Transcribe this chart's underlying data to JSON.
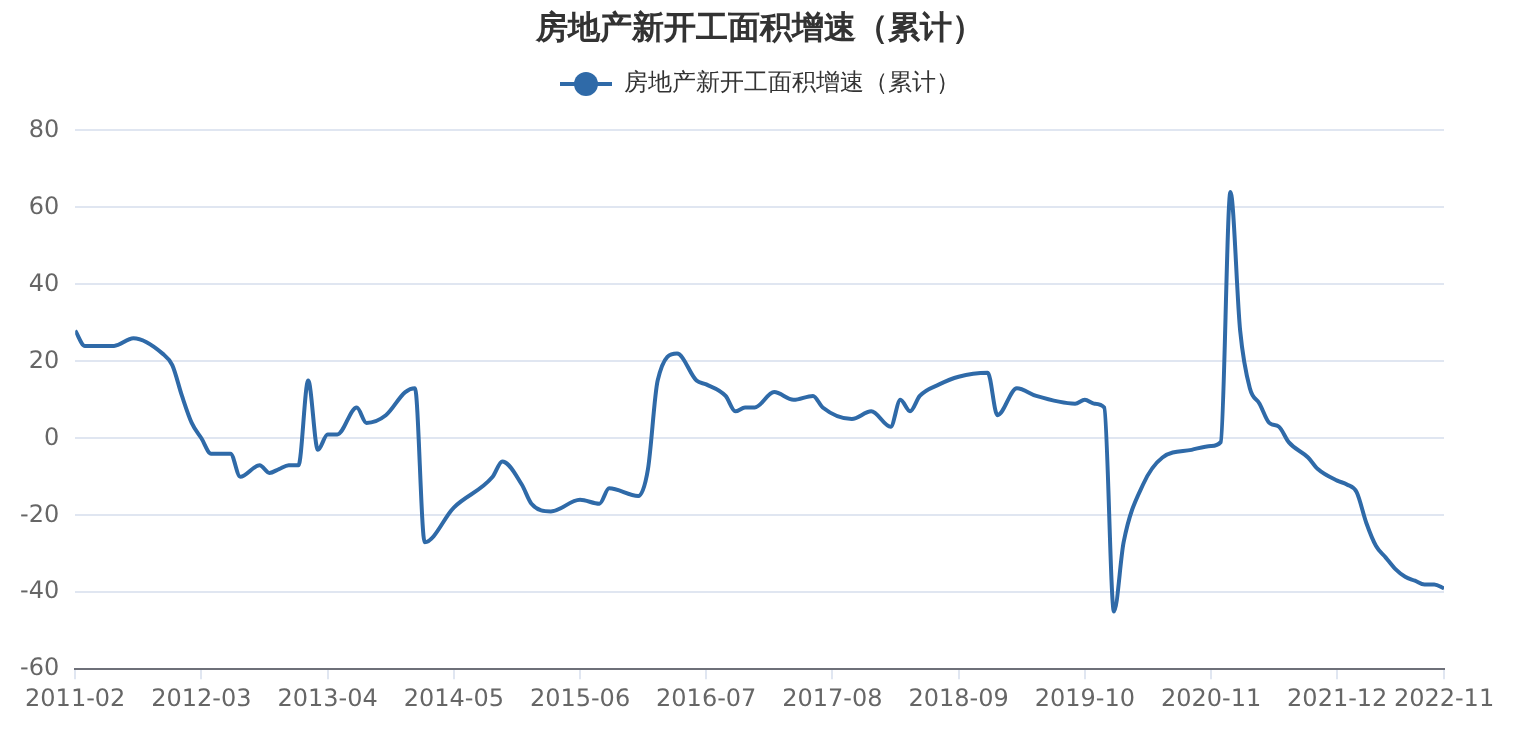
{
  "chart_data": {
    "type": "line",
    "title": "房地产新开工面积增速（累计）",
    "legend": "top",
    "grid": "y",
    "x": [
      "2011-02",
      "2011-03",
      "2011-04",
      "2011-06",
      "2011-08",
      "2011-11",
      "2011-12",
      "2012-01",
      "2012-02",
      "2012-03",
      "2012-04",
      "2012-06",
      "2012-07",
      "2012-09",
      "2012-10",
      "2012-11",
      "2012-12",
      "2013-01",
      "2013-02",
      "2013-03",
      "2013-04",
      "2013-05",
      "2013-07",
      "2013-08",
      "2013-10",
      "2013-12",
      "2014-01",
      "2014-02",
      "2014-05",
      "2014-09",
      "2014-10",
      "2014-12",
      "2015-01",
      "2015-03",
      "2015-06",
      "2015-08",
      "2015-09",
      "2015-12",
      "2016-01",
      "2016-02",
      "2016-04",
      "2016-06",
      "2016-07",
      "2016-09",
      "2016-10",
      "2016-11",
      "2016-12",
      "2017-02",
      "2017-04",
      "2017-06",
      "2017-07",
      "2017-10",
      "2017-12",
      "2018-02",
      "2018-03",
      "2018-04",
      "2018-05",
      "2018-07",
      "2018-09",
      "2018-12",
      "2019-01",
      "2019-03",
      "2019-05",
      "2019-09",
      "2019-10",
      "2019-11",
      "2019-12",
      "2020-01",
      "2020-02",
      "2020-04",
      "2020-06",
      "2020-09",
      "2020-11",
      "2020-12",
      "2021-01",
      "2021-02",
      "2021-03",
      "2021-04",
      "2021-05",
      "2021-06",
      "2021-07",
      "2021-09",
      "2021-10",
      "2021-12",
      "2022-01",
      "2022-02",
      "2022-03",
      "2022-04",
      "2022-05",
      "2022-06",
      "2022-07",
      "2022-08",
      "2022-09",
      "2022-10",
      "2022-11"
    ],
    "series": [
      {
        "name": "房地产新开工面积增速（累计）",
        "color": "#2f6aa8",
        "values": [
          28,
          24,
          24,
          24,
          26,
          22,
          19,
          11,
          4,
          0,
          -4,
          -4,
          -10,
          -7,
          -9,
          -8,
          -7,
          -7,
          15,
          -3,
          1,
          1,
          8,
          4,
          6,
          12,
          13,
          -27,
          -18,
          -10,
          -6,
          -12,
          -17,
          -19,
          -16,
          -17,
          -13,
          -15,
          -8,
          15,
          22,
          15,
          14,
          11,
          7,
          8,
          8,
          12,
          10,
          11,
          8,
          5,
          7,
          3,
          10,
          7,
          11,
          14,
          16,
          17,
          6,
          13,
          11,
          9,
          10,
          9,
          8,
          -45,
          -27,
          -12,
          -5,
          -3,
          -2,
          -1,
          64,
          28,
          13,
          9,
          4,
          3,
          -1,
          -5,
          -8,
          -11,
          -12,
          -14,
          -22,
          -28,
          -31,
          -34,
          -36,
          -37,
          -38,
          -38,
          -39
        ]
      }
    ],
    "xlim": [
      "2011-02",
      "2022-11"
    ],
    "xticks": [
      "2011-02",
      "2012-03",
      "2013-04",
      "2014-05",
      "2015-06",
      "2016-07",
      "2017-08",
      "2018-09",
      "2019-10",
      "2020-11",
      "2021-12",
      "2022-11"
    ],
    "ylim": [
      -60,
      80
    ],
    "yticks": [
      -60,
      -40,
      -20,
      0,
      20,
      40,
      60,
      80
    ]
  }
}
